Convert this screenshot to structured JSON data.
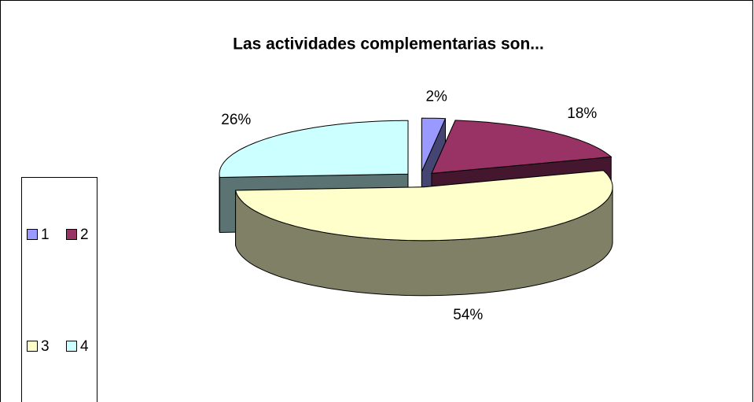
{
  "chart_data": {
    "type": "pie",
    "title": "Las actividades complementarias son...",
    "categories": [
      "1",
      "2",
      "3",
      "4"
    ],
    "values": [
      2,
      18,
      54,
      26
    ],
    "value_labels": [
      "2%",
      "18%",
      "54%",
      "26%"
    ],
    "colors": [
      "#9999ff",
      "#993366",
      "#ffffcc",
      "#ccffff"
    ],
    "legend": "left"
  }
}
